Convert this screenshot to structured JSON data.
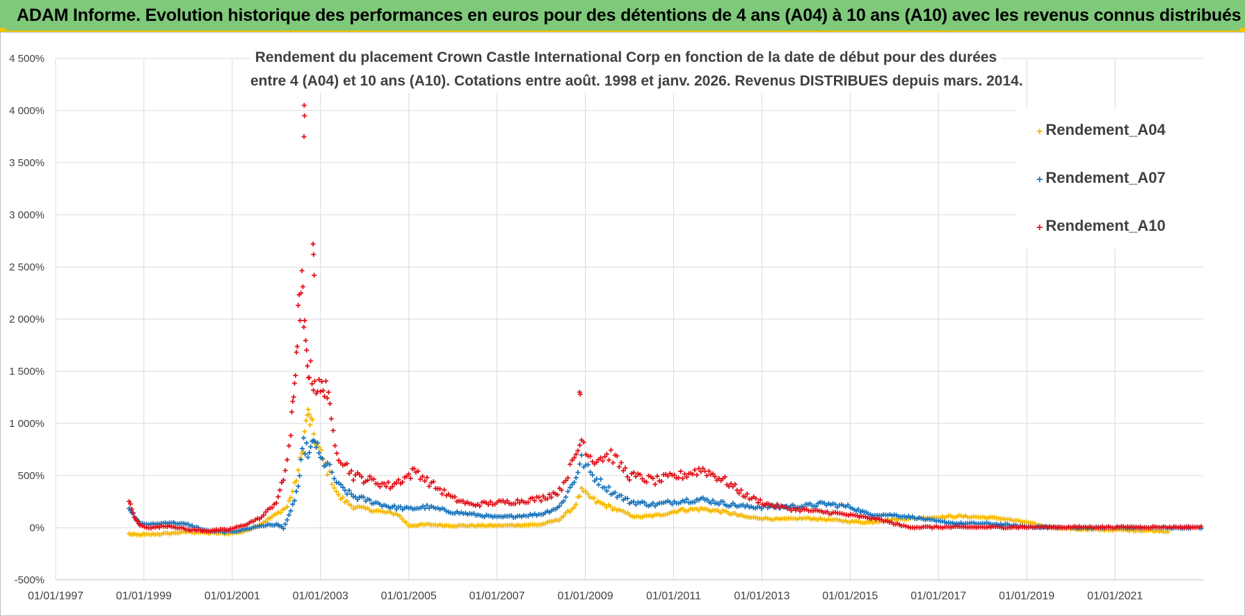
{
  "banner": {
    "title": "ADAM Informe. Evolution historique des performances en euros pour des détentions de 4 ans (A04) à 10 ans (A10) avec les revenus connus distribués"
  },
  "chart_data": {
    "type": "scatter",
    "title": [
      "Rendement du placement Crown Castle International Corp en fonction de la date de début pour des durées",
      "entre 4 (A04) et 10 ans (A10). Cotations entre août. 1998 et janv. 2026. Revenus DISTRIBUES depuis mars. 2014."
    ],
    "xlabel": "",
    "ylabel": "",
    "x_axis": {
      "type": "date",
      "range": [
        "1997-01-01",
        "2023-01-01"
      ],
      "tick_labels": [
        "01/01/1997",
        "01/01/1999",
        "01/01/2001",
        "01/01/2003",
        "01/01/2005",
        "01/01/2007",
        "01/01/2009",
        "01/01/2011",
        "01/01/2013",
        "01/01/2015",
        "01/01/2017",
        "01/01/2019",
        "01/01/2021"
      ]
    },
    "y_axis": {
      "unit": "%",
      "range": [
        -500,
        4500
      ],
      "tick_values": [
        -500,
        0,
        500,
        1000,
        1500,
        2000,
        2500,
        3000,
        3500,
        4000,
        4500
      ],
      "tick_labels": [
        "-500%",
        "0%",
        "500%",
        "1 000%",
        "1 500%",
        "2 000%",
        "2 500%",
        "3 000%",
        "3 500%",
        "4 000%",
        "4 500%"
      ]
    },
    "grid": true,
    "legend_position": "top-right",
    "marker": "+",
    "series": [
      {
        "name": "Rendement_A04",
        "color": "#f5b800",
        "end_date": "2022-04-01",
        "points": [
          [
            "1998-09-01",
            -60
          ],
          [
            "1998-11-01",
            -70
          ],
          [
            "1999-03-01",
            -65
          ],
          [
            "1999-08-01",
            -55
          ],
          [
            "2000-01-01",
            -40
          ],
          [
            "2000-06-01",
            -50
          ],
          [
            "2000-12-01",
            -55
          ],
          [
            "2001-04-01",
            -40
          ],
          [
            "2001-09-01",
            40
          ],
          [
            "2002-01-01",
            130
          ],
          [
            "2002-04-01",
            200
          ],
          [
            "2002-06-01",
            400
          ],
          [
            "2002-08-01",
            700
          ],
          [
            "2002-09-15",
            1100
          ],
          [
            "2002-10-15",
            1000
          ],
          [
            "2002-12-01",
            800
          ],
          [
            "2003-03-01",
            550
          ],
          [
            "2003-06-01",
            300
          ],
          [
            "2003-10-01",
            200
          ],
          [
            "2004-03-01",
            170
          ],
          [
            "2004-06-01",
            150
          ],
          [
            "2004-10-01",
            130
          ],
          [
            "2005-01-01",
            20
          ],
          [
            "2005-06-01",
            30
          ],
          [
            "2006-01-01",
            20
          ],
          [
            "2007-01-01",
            20
          ],
          [
            "2008-01-01",
            30
          ],
          [
            "2008-06-01",
            80
          ],
          [
            "2008-10-01",
            200
          ],
          [
            "2008-12-01",
            350
          ],
          [
            "2009-04-01",
            250
          ],
          [
            "2009-09-01",
            180
          ],
          [
            "2010-03-01",
            100
          ],
          [
            "2010-09-01",
            120
          ],
          [
            "2011-03-01",
            170
          ],
          [
            "2011-09-01",
            180
          ],
          [
            "2012-03-01",
            150
          ],
          [
            "2012-09-01",
            100
          ],
          [
            "2013-06-01",
            80
          ],
          [
            "2014-01-01",
            90
          ],
          [
            "2014-06-01",
            80
          ],
          [
            "2015-01-01",
            60
          ],
          [
            "2015-06-01",
            50
          ],
          [
            "2016-01-01",
            80
          ],
          [
            "2016-06-01",
            90
          ],
          [
            "2017-01-01",
            100
          ],
          [
            "2017-06-01",
            110
          ],
          [
            "2018-01-01",
            100
          ],
          [
            "2018-06-01",
            90
          ],
          [
            "2019-01-01",
            50
          ],
          [
            "2019-06-01",
            10
          ],
          [
            "2020-01-01",
            -10
          ],
          [
            "2020-06-01",
            -20
          ],
          [
            "2021-01-01",
            -20
          ],
          [
            "2021-06-01",
            -25
          ],
          [
            "2022-01-01",
            -30
          ],
          [
            "2022-04-01",
            -40
          ]
        ]
      },
      {
        "name": "Rendement_A07",
        "color": "#1b75bc",
        "end_date": "2023-01-01",
        "points": [
          [
            "1998-09-01",
            200
          ],
          [
            "1998-10-15",
            100
          ],
          [
            "1998-12-01",
            40
          ],
          [
            "1999-03-01",
            30
          ],
          [
            "1999-08-01",
            50
          ],
          [
            "2000-01-01",
            30
          ],
          [
            "2000-06-01",
            -30
          ],
          [
            "2000-12-01",
            -40
          ],
          [
            "2001-04-01",
            -20
          ],
          [
            "2001-09-01",
            20
          ],
          [
            "2002-01-01",
            30
          ],
          [
            "2002-03-01",
            0
          ],
          [
            "2002-05-01",
            150
          ],
          [
            "2002-07-01",
            400
          ],
          [
            "2002-08-15",
            800
          ],
          [
            "2002-10-01",
            700
          ],
          [
            "2002-11-15",
            850
          ],
          [
            "2003-01-01",
            650
          ],
          [
            "2003-03-01",
            600
          ],
          [
            "2003-06-01",
            400
          ],
          [
            "2003-10-01",
            300
          ],
          [
            "2004-03-01",
            250
          ],
          [
            "2004-08-01",
            200
          ],
          [
            "2005-01-01",
            180
          ],
          [
            "2005-06-01",
            200
          ],
          [
            "2006-01-01",
            150
          ],
          [
            "2007-01-01",
            100
          ],
          [
            "2007-06-01",
            110
          ],
          [
            "2008-01-01",
            130
          ],
          [
            "2008-06-01",
            200
          ],
          [
            "2008-10-01",
            450
          ],
          [
            "2008-12-01",
            650
          ],
          [
            "2009-03-01",
            500
          ],
          [
            "2009-08-01",
            350
          ],
          [
            "2010-01-01",
            250
          ],
          [
            "2010-08-01",
            220
          ],
          [
            "2011-03-01",
            260
          ],
          [
            "2011-09-01",
            270
          ],
          [
            "2012-03-01",
            230
          ],
          [
            "2012-09-01",
            200
          ],
          [
            "2013-06-01",
            200
          ],
          [
            "2014-01-01",
            210
          ],
          [
            "2014-06-01",
            230
          ],
          [
            "2015-01-01",
            200
          ],
          [
            "2015-06-01",
            130
          ],
          [
            "2016-01-01",
            120
          ],
          [
            "2016-06-01",
            100
          ],
          [
            "2017-01-01",
            60
          ],
          [
            "2017-06-01",
            40
          ],
          [
            "2018-01-01",
            40
          ],
          [
            "2018-06-01",
            30
          ],
          [
            "2019-01-01",
            10
          ],
          [
            "2019-06-01",
            5
          ],
          [
            "2020-01-01",
            0
          ],
          [
            "2021-01-01",
            0
          ],
          [
            "2022-01-01",
            0
          ],
          [
            "2023-01-01",
            0
          ]
        ]
      },
      {
        "name": "Rendement_A10",
        "color": "#e3121a",
        "end_date": "2023-01-01",
        "points": [
          [
            "1998-09-01",
            250
          ],
          [
            "1998-10-15",
            100
          ],
          [
            "1998-12-01",
            20
          ],
          [
            "1999-03-01",
            0
          ],
          [
            "1999-08-01",
            20
          ],
          [
            "2000-01-01",
            -20
          ],
          [
            "2000-06-01",
            -30
          ],
          [
            "2000-12-01",
            -20
          ],
          [
            "2001-04-01",
            20
          ],
          [
            "2001-09-01",
            100
          ],
          [
            "2002-01-01",
            250
          ],
          [
            "2002-03-01",
            450
          ],
          [
            "2002-05-01",
            900
          ],
          [
            "2002-06-01",
            1400
          ],
          [
            "2002-07-01",
            2000
          ],
          [
            "2002-08-01",
            2300
          ],
          [
            "2002-09-01",
            1700
          ],
          [
            "2002-10-01",
            1500
          ],
          [
            "2002-11-15",
            1400
          ],
          [
            "2003-01-01",
            1300
          ],
          [
            "2003-02-15",
            1400
          ],
          [
            "2003-04-01",
            1000
          ],
          [
            "2003-06-01",
            700
          ],
          [
            "2003-10-01",
            500
          ],
          [
            "2004-03-01",
            450
          ],
          [
            "2004-08-01",
            400
          ],
          [
            "2005-01-01",
            500
          ],
          [
            "2005-03-01",
            550
          ],
          [
            "2005-06-01",
            450
          ],
          [
            "2006-01-01",
            280
          ],
          [
            "2006-06-01",
            220
          ],
          [
            "2007-01-01",
            240
          ],
          [
            "2007-06-01",
            250
          ],
          [
            "2008-01-01",
            280
          ],
          [
            "2008-06-01",
            350
          ],
          [
            "2008-10-01",
            650
          ],
          [
            "2008-12-01",
            850
          ],
          [
            "2009-03-01",
            650
          ],
          [
            "2009-08-01",
            700
          ],
          [
            "2010-01-01",
            500
          ],
          [
            "2010-08-01",
            450
          ],
          [
            "2011-03-01",
            500
          ],
          [
            "2011-09-01",
            560
          ],
          [
            "2012-03-01",
            450
          ],
          [
            "2012-09-01",
            300
          ],
          [
            "2013-03-01",
            220
          ],
          [
            "2013-09-01",
            180
          ],
          [
            "2014-03-01",
            160
          ],
          [
            "2014-09-01",
            140
          ],
          [
            "2015-03-01",
            110
          ],
          [
            "2015-09-01",
            80
          ],
          [
            "2016-03-01",
            20
          ],
          [
            "2016-06-01",
            5
          ],
          [
            "2017-01-01",
            5
          ],
          [
            "2018-01-01",
            5
          ],
          [
            "2019-01-01",
            5
          ],
          [
            "2020-01-01",
            5
          ],
          [
            "2021-01-01",
            5
          ],
          [
            "2022-01-01",
            5
          ],
          [
            "2023-01-01",
            5
          ]
        ],
        "spikes": [
          [
            "2002-08-20",
            4050
          ],
          [
            "2002-08-22",
            3950
          ],
          [
            "2002-08-18",
            3750
          ],
          [
            "2002-11-01",
            2720
          ],
          [
            "2002-11-05",
            2620
          ],
          [
            "2002-11-10",
            2420
          ],
          [
            "2008-11-15",
            1300
          ],
          [
            "2008-11-20",
            1280
          ]
        ]
      }
    ]
  }
}
